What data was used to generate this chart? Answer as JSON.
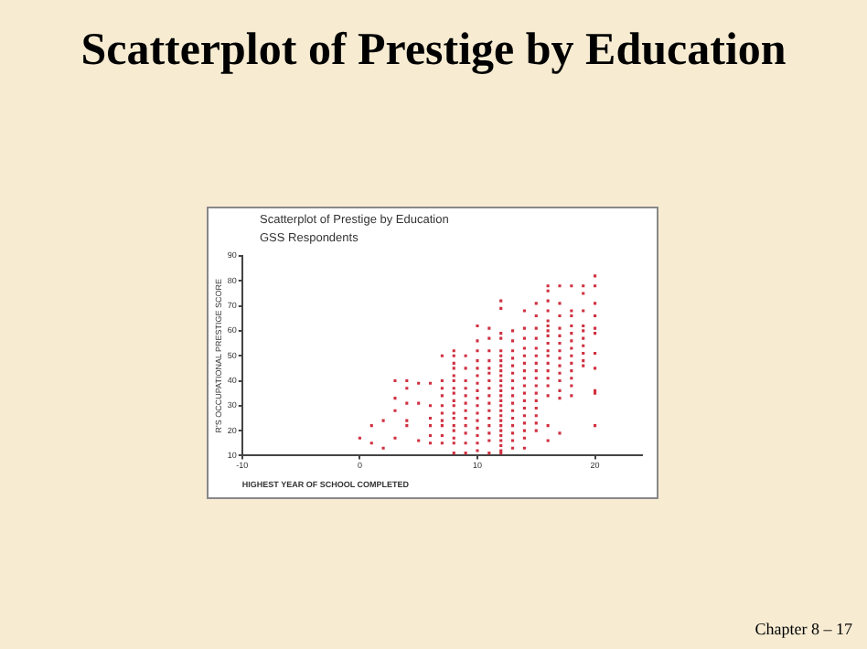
{
  "chart_data": {
    "type": "scatter",
    "title": "Scatterplot of Prestige by Education",
    "subtitle": "GSS Respondents",
    "xlabel": "HIGHEST YEAR OF SCHOOL COMPLETED",
    "ylabel": "R'S OCCUPATIONAL PRESTIGE SCORE",
    "annotations": [
      "Scatterplot of Prestige by Education",
      "Chapter 8 – 17"
    ],
    "xlim": [
      -10,
      24
    ],
    "xticks": [
      -10,
      0,
      10,
      20
    ],
    "ylim": [
      10,
      90
    ],
    "yticks": [
      10,
      20,
      30,
      40,
      50,
      60,
      70,
      80,
      90
    ],
    "grid": false,
    "legend": false,
    "marker": "square",
    "series": [
      {
        "color": "#d03040",
        "x": [
          0,
          1,
          1,
          2,
          2,
          3,
          3,
          3,
          3,
          4,
          4,
          4,
          4,
          4,
          5,
          5,
          5,
          6,
          6,
          6,
          6,
          6,
          6,
          7,
          7,
          7,
          7,
          7,
          7,
          7,
          7,
          7,
          7,
          8,
          8,
          8,
          8,
          8,
          8,
          8,
          8,
          8,
          8,
          8,
          8,
          8,
          8,
          8,
          8,
          8,
          9,
          9,
          9,
          9,
          9,
          9,
          9,
          9,
          9,
          9,
          9,
          9,
          10,
          10,
          10,
          10,
          10,
          10,
          10,
          10,
          10,
          10,
          10,
          10,
          10,
          10,
          10,
          10,
          11,
          11,
          11,
          11,
          11,
          11,
          11,
          11,
          11,
          11,
          11,
          11,
          11,
          11,
          11,
          11,
          12,
          12,
          12,
          12,
          12,
          12,
          12,
          12,
          12,
          12,
          12,
          12,
          12,
          12,
          12,
          12,
          12,
          12,
          12,
          12,
          12,
          12,
          12,
          12,
          12,
          12,
          13,
          13,
          13,
          13,
          13,
          13,
          13,
          13,
          13,
          13,
          13,
          13,
          13,
          13,
          13,
          13,
          14,
          14,
          14,
          14,
          14,
          14,
          14,
          14,
          14,
          14,
          14,
          14,
          14,
          14,
          14,
          14,
          14,
          15,
          15,
          15,
          15,
          15,
          15,
          15,
          15,
          15,
          15,
          15,
          15,
          15,
          15,
          15,
          15,
          16,
          16,
          16,
          16,
          16,
          16,
          16,
          16,
          16,
          16,
          16,
          16,
          16,
          16,
          16,
          16,
          16,
          16,
          17,
          17,
          17,
          17,
          17,
          17,
          17,
          17,
          17,
          17,
          17,
          17,
          17,
          17,
          18,
          18,
          18,
          18,
          18,
          18,
          18,
          18,
          18,
          18,
          18,
          18,
          18,
          19,
          19,
          19,
          19,
          19,
          19,
          19,
          19,
          19,
          19,
          20,
          20,
          20,
          20,
          20,
          20,
          20,
          20,
          20,
          20,
          20
        ],
        "values": [
          17,
          22,
          15,
          24,
          13,
          40,
          33,
          28,
          17,
          40,
          37,
          31,
          24,
          22,
          39,
          31,
          16,
          39,
          30,
          25,
          22,
          18,
          15,
          50,
          40,
          37,
          34,
          30,
          27,
          24,
          22,
          18,
          15,
          52,
          50,
          47,
          45,
          42,
          40,
          37,
          35,
          32,
          30,
          27,
          25,
          22,
          20,
          17,
          15,
          11,
          50,
          45,
          40,
          37,
          34,
          31,
          28,
          25,
          22,
          19,
          15,
          11,
          62,
          56,
          52,
          48,
          45,
          42,
          39,
          36,
          33,
          30,
          27,
          24,
          21,
          18,
          15,
          12,
          61,
          57,
          52,
          48,
          45,
          43,
          40,
          37,
          34,
          31,
          28,
          25,
          22,
          19,
          16,
          11,
          72,
          69,
          59,
          57,
          52,
          50,
          48,
          46,
          44,
          42,
          40,
          38,
          36,
          34,
          32,
          30,
          28,
          26,
          24,
          22,
          20,
          18,
          16,
          14,
          12,
          11,
          60,
          56,
          52,
          49,
          46,
          43,
          40,
          37,
          34,
          31,
          28,
          25,
          22,
          19,
          16,
          13,
          68,
          61,
          57,
          53,
          50,
          47,
          44,
          41,
          38,
          35,
          32,
          29,
          26,
          23,
          20,
          17,
          13,
          71,
          66,
          61,
          57,
          53,
          50,
          47,
          44,
          41,
          38,
          35,
          32,
          29,
          26,
          23,
          20,
          78,
          76,
          72,
          68,
          64,
          62,
          60,
          58,
          55,
          52,
          50,
          47,
          44,
          41,
          38,
          34,
          22,
          16,
          78,
          71,
          66,
          61,
          58,
          55,
          52,
          49,
          46,
          43,
          40,
          36,
          33,
          19,
          78,
          68,
          66,
          62,
          59,
          56,
          53,
          50,
          47,
          44,
          41,
          38,
          34,
          78,
          75,
          68,
          62,
          60,
          57,
          54,
          51,
          48,
          46,
          82,
          78,
          71,
          66,
          61,
          59,
          51,
          45,
          36,
          35,
          22
        ]
      }
    ]
  }
}
